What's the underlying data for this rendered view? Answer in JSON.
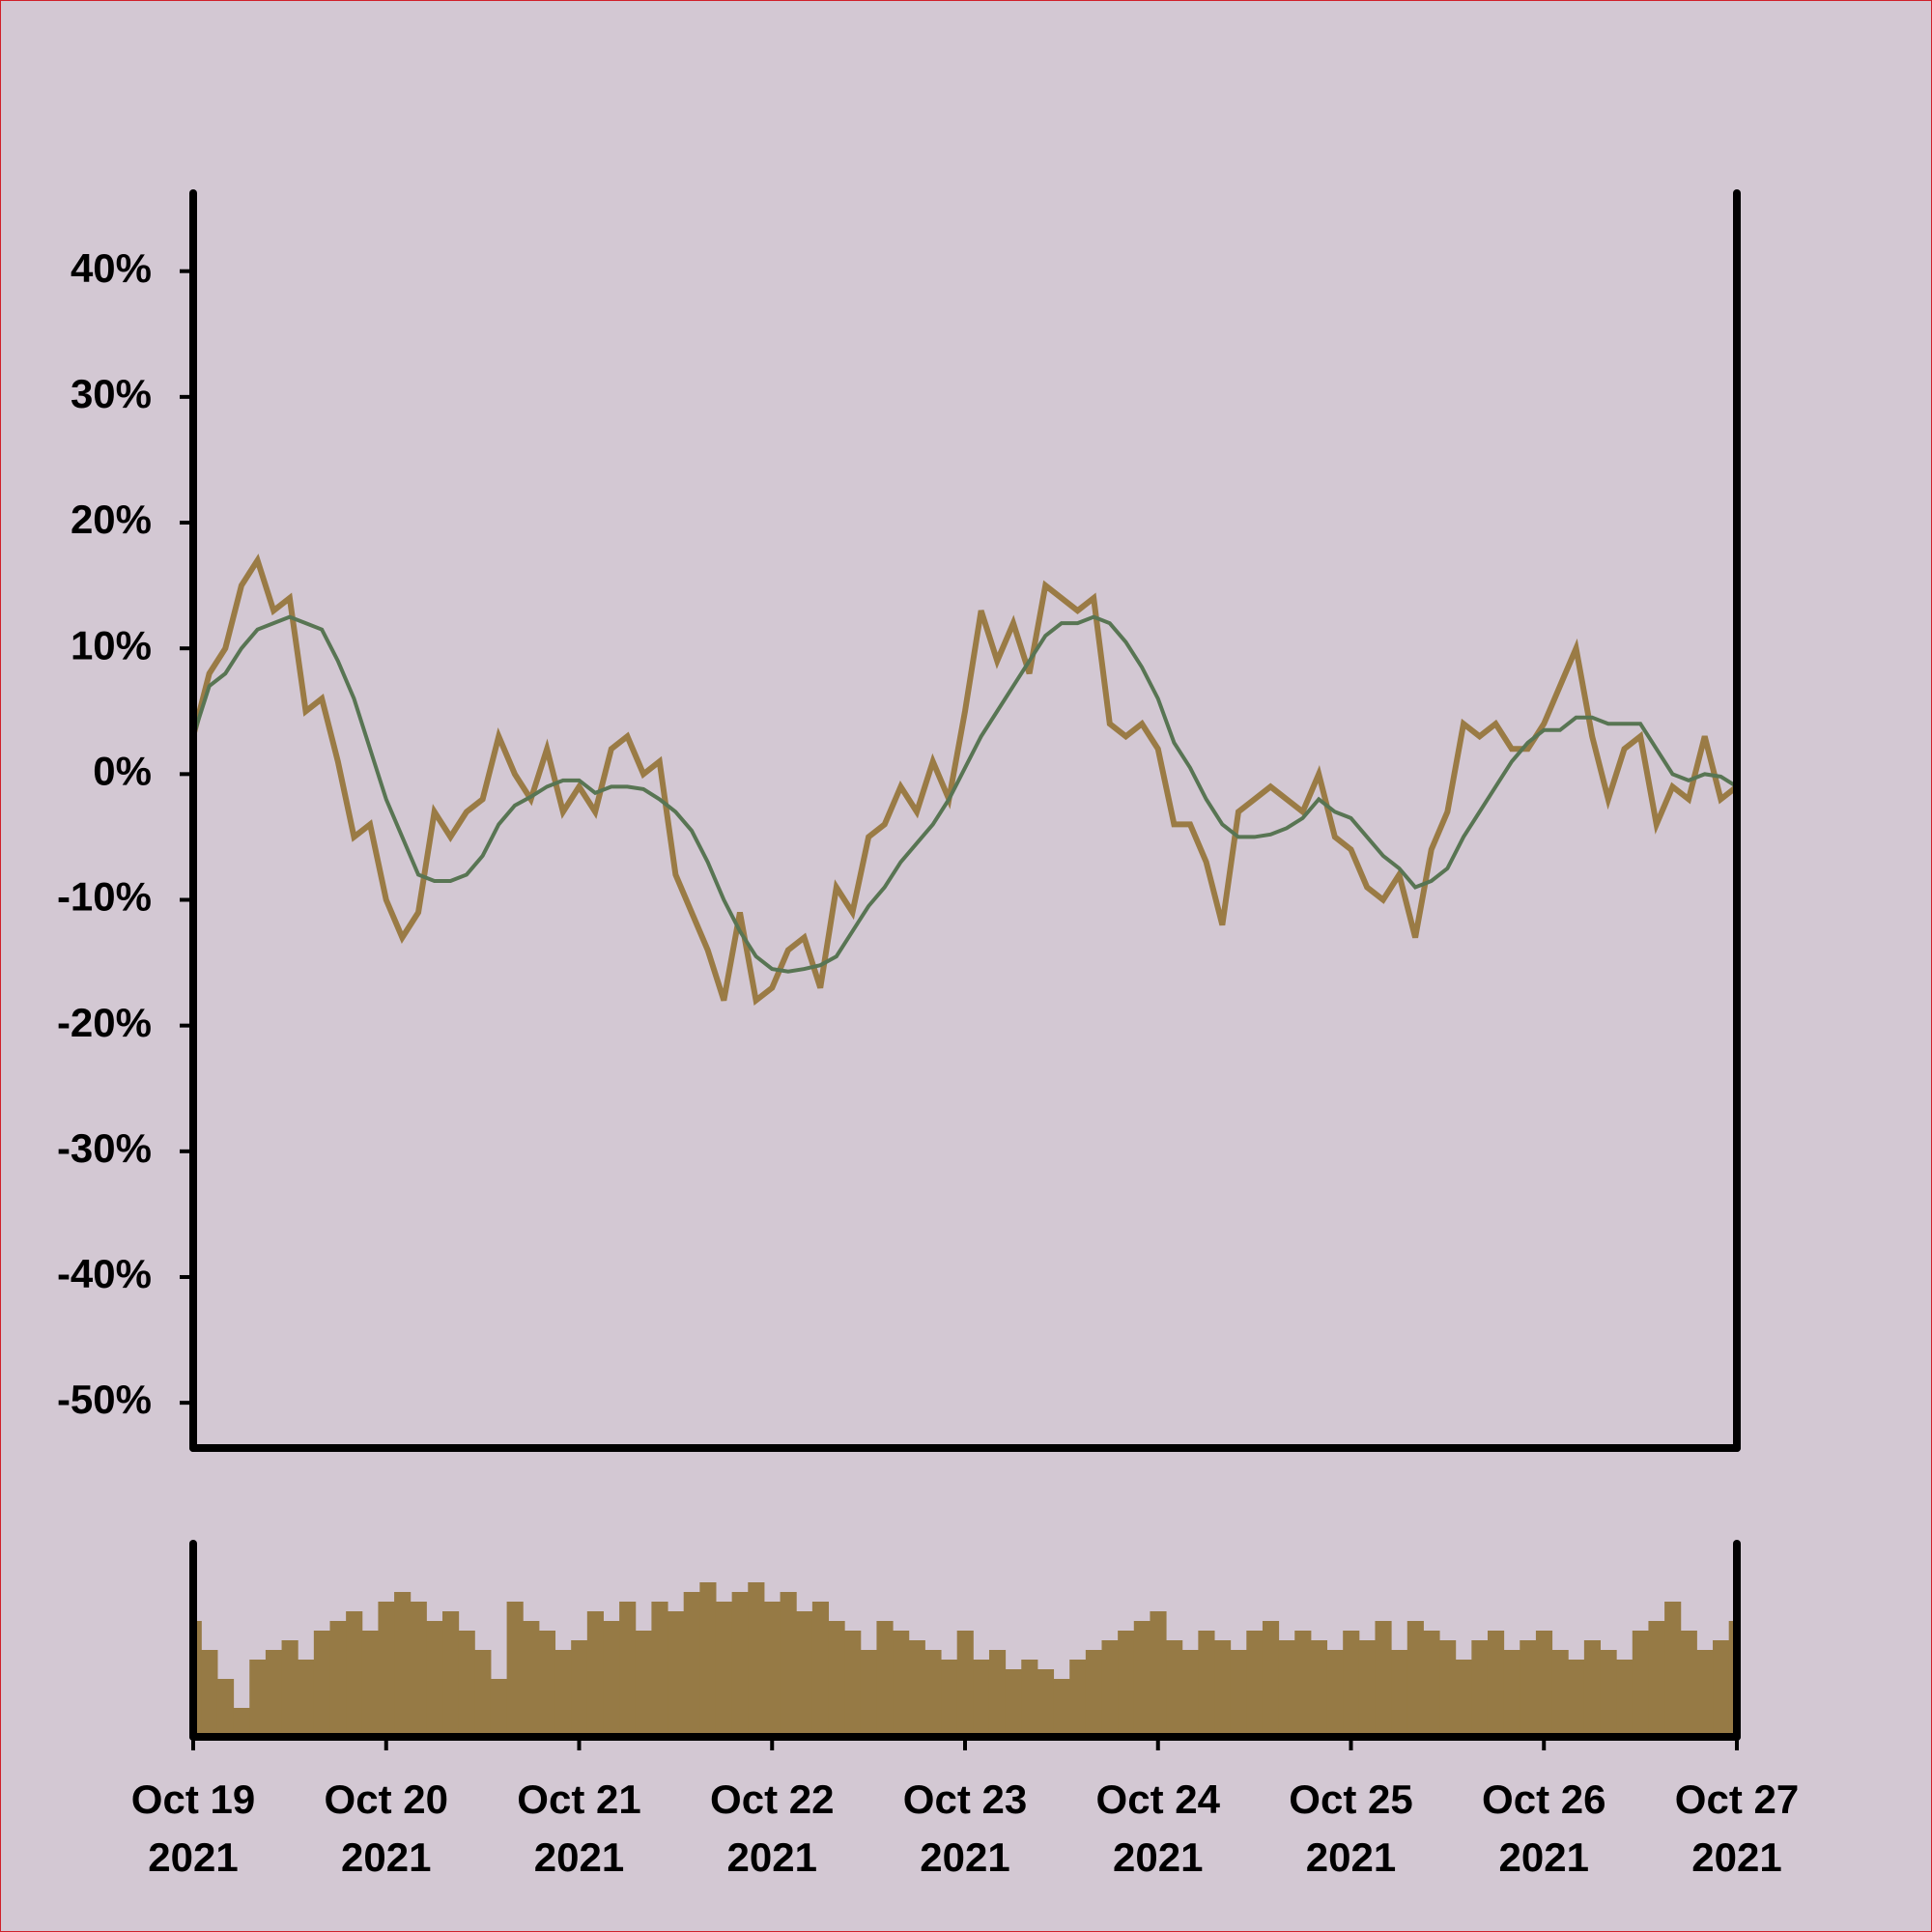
{
  "chart_data": [
    {
      "type": "line",
      "x": [
        0,
        2,
        4,
        6,
        8,
        10,
        12,
        14,
        16,
        18,
        20,
        22,
        24,
        26,
        28,
        30,
        32,
        34,
        36,
        38,
        40,
        42,
        44,
        46,
        48,
        50,
        52,
        54,
        56,
        58,
        60,
        62,
        64,
        66,
        68,
        70,
        72,
        74,
        76,
        78,
        80,
        82,
        84,
        86,
        88,
        90,
        92,
        94,
        96,
        98,
        100,
        102,
        104,
        106,
        108,
        110,
        112,
        114,
        116,
        118,
        120,
        122,
        124,
        126,
        128,
        130,
        132,
        134,
        136,
        138,
        140,
        142,
        144,
        146,
        148,
        150,
        152,
        154,
        156,
        158,
        160,
        162,
        164,
        166,
        168,
        170,
        172,
        174,
        176,
        178,
        180,
        182,
        184,
        186,
        188,
        190,
        192
      ],
      "xlim": [
        0,
        192
      ],
      "ylim": [
        -53.6,
        46.2
      ],
      "yticks": [
        {
          "value": 40,
          "label": "40%"
        },
        {
          "value": 30,
          "label": "30%"
        },
        {
          "value": 20,
          "label": "20%"
        },
        {
          "value": 10,
          "label": "10%"
        },
        {
          "value": 0,
          "label": "0%"
        },
        {
          "value": -10,
          "label": "-10%"
        },
        {
          "value": -20,
          "label": "-20%"
        },
        {
          "value": -30,
          "label": "-30%"
        },
        {
          "value": -40,
          "label": "-40%"
        },
        {
          "value": -50,
          "label": "-50%"
        }
      ],
      "series": [
        {
          "color": "#9a7b45",
          "values": [
            3,
            8,
            10,
            15,
            17,
            13,
            14,
            5,
            6,
            1,
            -5,
            -4,
            -10,
            -13,
            -11,
            -3,
            -5,
            -3,
            -2,
            3,
            0,
            -2,
            2,
            -3,
            -1,
            -3,
            2,
            3,
            0,
            1,
            -8,
            -11,
            -14,
            -18,
            -11,
            -18,
            -17,
            -14,
            -13,
            -17,
            -9,
            -11,
            -5,
            -4,
            -1,
            -3,
            1,
            -2,
            5,
            13,
            9,
            12,
            8,
            15,
            14,
            13,
            14,
            4,
            3,
            4,
            2,
            -4,
            -4,
            -7,
            -12,
            -3,
            -2,
            -1,
            -2,
            -3,
            0,
            -5,
            -6,
            -9,
            -10,
            -8,
            -13,
            -6,
            -3,
            4,
            3,
            4,
            2,
            2,
            4,
            7,
            10,
            3,
            -2,
            2,
            3,
            -4,
            -1,
            -2,
            3,
            -2,
            -1
          ]
        },
        {
          "color": "#587553",
          "values": [
            3,
            7,
            8,
            10,
            11.5,
            12,
            12.5,
            12,
            11.5,
            9,
            6,
            2,
            -2,
            -5,
            -8,
            -8.5,
            -8.5,
            -8,
            -6.5,
            -4,
            -2.5,
            -1.8,
            -1,
            -0.5,
            -0.5,
            -1.5,
            -1,
            -1,
            -1.2,
            -2,
            -3,
            -4.5,
            -7,
            -10,
            -12.5,
            -14.5,
            -15.5,
            -15.7,
            -15.5,
            -15.2,
            -14.5,
            -12.5,
            -10.5,
            -9,
            -7,
            -5.5,
            -4,
            -2,
            0.5,
            3,
            5,
            7,
            9,
            11,
            12,
            12,
            12.5,
            12,
            10.5,
            8.5,
            6,
            2.5,
            0.5,
            -2,
            -4,
            -5,
            -5,
            -4.8,
            -4.3,
            -3.5,
            -2,
            -3,
            -3.5,
            -5,
            -6.5,
            -7.5,
            -9,
            -8.5,
            -7.5,
            -5,
            -3,
            -1,
            1,
            2.5,
            3.5,
            3.5,
            4.5,
            4.5,
            4,
            4,
            4,
            2,
            0,
            -0.5,
            0,
            -0.2,
            -1
          ]
        }
      ]
    },
    {
      "type": "bar",
      "x": [
        0,
        2,
        4,
        6,
        8,
        10,
        12,
        14,
        16,
        18,
        20,
        22,
        24,
        26,
        28,
        30,
        32,
        34,
        36,
        38,
        40,
        42,
        44,
        46,
        48,
        50,
        52,
        54,
        56,
        58,
        60,
        62,
        64,
        66,
        68,
        70,
        72,
        74,
        76,
        78,
        80,
        82,
        84,
        86,
        88,
        90,
        92,
        94,
        96,
        98,
        100,
        102,
        104,
        106,
        108,
        110,
        112,
        114,
        116,
        118,
        120,
        122,
        124,
        126,
        128,
        130,
        132,
        134,
        136,
        138,
        140,
        142,
        144,
        146,
        148,
        150,
        152,
        154,
        156,
        158,
        160,
        162,
        164,
        166,
        168,
        170,
        172,
        174,
        176,
        178,
        180,
        182,
        184,
        186,
        188,
        190,
        192
      ],
      "xlim": [
        0,
        192
      ],
      "ylim": [
        0,
        100
      ],
      "color": "#967a45",
      "values": [
        60,
        45,
        30,
        15,
        40,
        45,
        50,
        40,
        55,
        60,
        65,
        55,
        70,
        75,
        70,
        60,
        65,
        55,
        45,
        30,
        70,
        60,
        55,
        45,
        50,
        65,
        60,
        70,
        55,
        70,
        65,
        75,
        80,
        70,
        75,
        80,
        70,
        75,
        65,
        70,
        60,
        55,
        45,
        60,
        55,
        50,
        45,
        40,
        55,
        40,
        45,
        35,
        40,
        35,
        30,
        40,
        45,
        50,
        55,
        60,
        65,
        50,
        45,
        55,
        50,
        45,
        55,
        60,
        50,
        55,
        50,
        45,
        55,
        50,
        60,
        45,
        60,
        55,
        50,
        40,
        50,
        55,
        45,
        50,
        55,
        45,
        40,
        50,
        45,
        40,
        55,
        60,
        70,
        55,
        45,
        50,
        60
      ],
      "xticks": [
        {
          "value": 0,
          "label": [
            "Oct 19",
            "2021"
          ]
        },
        {
          "value": 24,
          "label": [
            "Oct 20",
            "2021"
          ]
        },
        {
          "value": 48,
          "label": [
            "Oct 21",
            "2021"
          ]
        },
        {
          "value": 72,
          "label": [
            "Oct 22",
            "2021"
          ]
        },
        {
          "value": 96,
          "label": [
            "Oct 23",
            "2021"
          ]
        },
        {
          "value": 120,
          "label": [
            "Oct 24",
            "2021"
          ]
        },
        {
          "value": 144,
          "label": [
            "Oct 25",
            "2021"
          ]
        },
        {
          "value": 168,
          "label": [
            "Oct 26",
            "2021"
          ]
        },
        {
          "value": 192,
          "label": [
            "Oct 27",
            "2021"
          ]
        }
      ]
    }
  ]
}
